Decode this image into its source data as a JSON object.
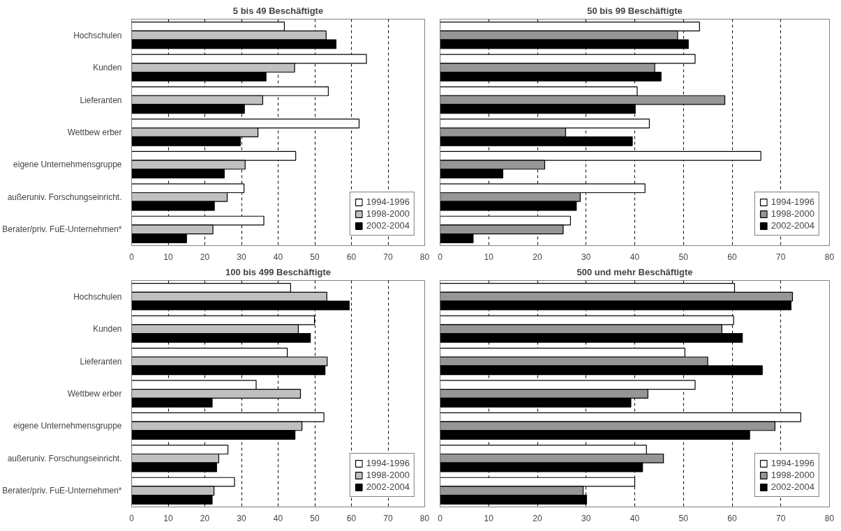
{
  "chart_data": [
    {
      "type": "bar",
      "orientation": "horizontal",
      "title": "5 bis 49 Beschäftigte",
      "categories": [
        "Hochschulen",
        "Kunden",
        "Lieferanten",
        "Wettbew erber",
        "eigene Unternehmensgruppe",
        "außeruniv. Forschungseinricht.",
        "Berater/priv. FuE-Unternehmen*"
      ],
      "series": [
        {
          "name": "1994-1996",
          "color": "#ffffff",
          "values": [
            41.7,
            64.1,
            53.7,
            62.1,
            44.8,
            30.7,
            36.1
          ]
        },
        {
          "name": "1998-2000",
          "color": "#c0c0c0",
          "values": [
            53.1,
            44.5,
            35.8,
            34.5,
            31.0,
            26.1,
            22.2
          ]
        },
        {
          "name": "2002-2004",
          "color": "#000000",
          "values": [
            55.8,
            36.7,
            30.8,
            29.7,
            25.3,
            22.6,
            15.0
          ]
        }
      ],
      "xlim": [
        0,
        80
      ],
      "xticks": [
        0,
        10,
        20,
        30,
        40,
        50,
        60,
        70,
        80
      ],
      "grid": "x",
      "legend": "bottom right"
    },
    {
      "type": "bar",
      "orientation": "horizontal",
      "title": "50 bis 99 Beschäftigte",
      "categories": [
        null,
        null,
        null,
        null,
        null,
        null,
        null
      ],
      "series": [
        {
          "name": "1994-1996",
          "color": "#ffffff",
          "values": [
            53.3,
            52.4,
            40.5,
            43.0,
            65.9,
            42.1,
            26.8
          ]
        },
        {
          "name": "1998-2000",
          "color": "#969696",
          "values": [
            48.8,
            44.1,
            58.5,
            25.8,
            21.5,
            28.8,
            25.3
          ]
        },
        {
          "name": "2002-2004",
          "color": "#000000",
          "values": [
            51.0,
            45.4,
            40.1,
            39.5,
            12.9,
            28.0,
            6.8
          ]
        }
      ],
      "xlim": [
        0,
        80
      ],
      "xticks": [
        0,
        10,
        20,
        30,
        40,
        50,
        60,
        70,
        80
      ],
      "grid": "x",
      "legend": "bottom right"
    },
    {
      "type": "bar",
      "orientation": "horizontal",
      "title": "100 bis 499 Beschäftigte",
      "categories": [
        "Hochschulen",
        "Kunden",
        "Lieferanten",
        "Wettbew erber",
        "eigene Unternehmensgruppe",
        "außeruniv. Forschungseinricht.",
        "Berater/priv. FuE-Unternehmen*"
      ],
      "series": [
        {
          "name": "1994-1996",
          "color": "#ffffff",
          "values": [
            43.4,
            49.9,
            42.5,
            34.0,
            52.5,
            26.3,
            28.1
          ]
        },
        {
          "name": "1998-2000",
          "color": "#c0c0c0",
          "values": [
            53.3,
            45.5,
            53.4,
            46.1,
            46.5,
            23.8,
            22.5
          ]
        },
        {
          "name": "2002-2004",
          "color": "#000000",
          "values": [
            59.4,
            48.8,
            52.8,
            22.0,
            44.6,
            23.2,
            22.0
          ]
        }
      ],
      "xlim": [
        0,
        80
      ],
      "xticks": [
        0,
        10,
        20,
        30,
        40,
        50,
        60,
        70,
        80
      ],
      "grid": "x",
      "legend": "bottom right"
    },
    {
      "type": "bar",
      "orientation": "horizontal",
      "title": "500 und mehr Beschäftigte",
      "categories": [
        null,
        null,
        null,
        null,
        null,
        null,
        null
      ],
      "series": [
        {
          "name": "1994-1996",
          "color": "#ffffff",
          "values": [
            60.5,
            60.3,
            50.3,
            52.4,
            74.1,
            42.4,
            40.0
          ]
        },
        {
          "name": "1998-2000",
          "color": "#969696",
          "values": [
            72.4,
            57.9,
            55.0,
            42.7,
            68.8,
            45.9,
            29.4
          ]
        },
        {
          "name": "2002-2004",
          "color": "#000000",
          "values": [
            72.1,
            62.1,
            66.2,
            39.2,
            63.6,
            41.6,
            30.1
          ]
        }
      ],
      "xlim": [
        0,
        80
      ],
      "xticks": [
        0,
        10,
        20,
        30,
        40,
        50,
        60,
        70,
        80
      ],
      "grid": "x",
      "legend": "bottom right"
    }
  ]
}
